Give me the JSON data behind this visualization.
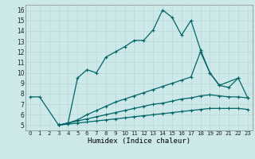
{
  "title": "",
  "xlabel": "Humidex (Indice chaleur)",
  "x_ticks": [
    0,
    1,
    2,
    3,
    4,
    5,
    6,
    7,
    8,
    9,
    10,
    11,
    12,
    13,
    14,
    15,
    16,
    17,
    18,
    19,
    20,
    21,
    22,
    23
  ],
  "y_ticks": [
    5,
    6,
    7,
    8,
    9,
    10,
    11,
    12,
    13,
    14,
    15,
    16
  ],
  "xlim": [
    -0.5,
    23.5
  ],
  "ylim": [
    4.5,
    16.5
  ],
  "bg_color": "#cce8e8",
  "grid_color": "#b8d8d8",
  "line_color": "#006666",
  "lines": [
    {
      "x": [
        0,
        1,
        3,
        4,
        5,
        6,
        7,
        8,
        9,
        10,
        11,
        12,
        13,
        14,
        15,
        16,
        17,
        18,
        19,
        20,
        22
      ],
      "y": [
        7.7,
        7.7,
        5.0,
        5.2,
        9.5,
        10.3,
        10.0,
        11.5,
        12.0,
        12.5,
        13.1,
        13.1,
        14.1,
        16.0,
        15.3,
        13.6,
        15.0,
        12.2,
        10.0,
        8.8,
        9.5
      ]
    },
    {
      "x": [
        3,
        4,
        5,
        6,
        7,
        8,
        9,
        10,
        11,
        12,
        13,
        14,
        15,
        16,
        17,
        18,
        19,
        20,
        21,
        22,
        23
      ],
      "y": [
        5.0,
        5.2,
        5.5,
        6.0,
        6.4,
        6.8,
        7.2,
        7.5,
        7.8,
        8.1,
        8.4,
        8.7,
        9.0,
        9.3,
        9.6,
        12.0,
        10.0,
        8.8,
        8.6,
        9.5,
        7.6
      ]
    },
    {
      "x": [
        3,
        4,
        5,
        6,
        7,
        8,
        9,
        10,
        11,
        12,
        13,
        14,
        15,
        16,
        17,
        18,
        19,
        20,
        21,
        22,
        23
      ],
      "y": [
        5.0,
        5.2,
        5.4,
        5.6,
        5.8,
        6.0,
        6.2,
        6.4,
        6.6,
        6.8,
        7.0,
        7.1,
        7.3,
        7.5,
        7.6,
        7.8,
        7.9,
        7.8,
        7.7,
        7.7,
        7.6
      ]
    },
    {
      "x": [
        3,
        4,
        5,
        6,
        7,
        8,
        9,
        10,
        11,
        12,
        13,
        14,
        15,
        16,
        17,
        18,
        19,
        20,
        21,
        22,
        23
      ],
      "y": [
        5.0,
        5.1,
        5.2,
        5.3,
        5.4,
        5.5,
        5.6,
        5.7,
        5.8,
        5.9,
        6.0,
        6.1,
        6.2,
        6.3,
        6.4,
        6.5,
        6.6,
        6.6,
        6.6,
        6.6,
        6.5
      ]
    }
  ]
}
